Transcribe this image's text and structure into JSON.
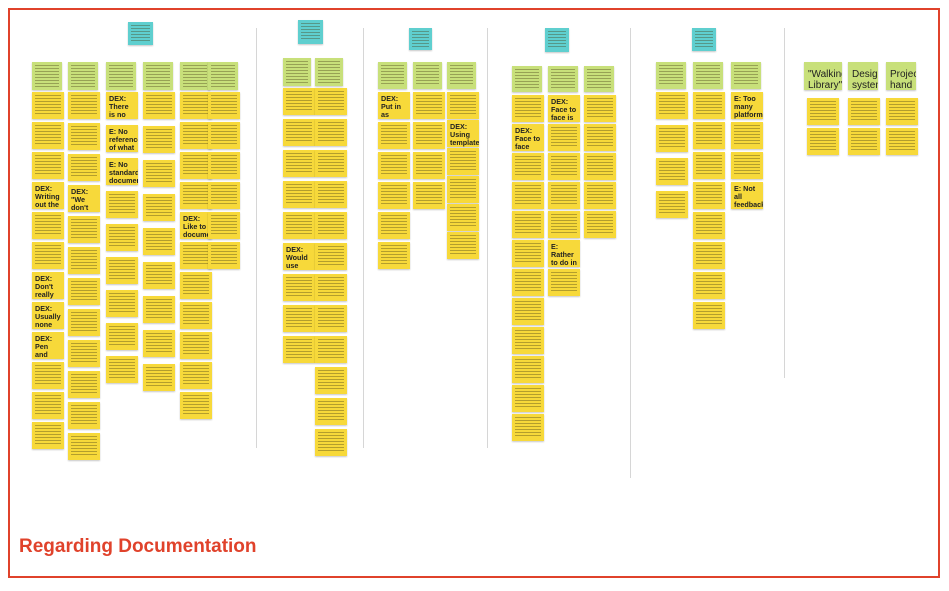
{
  "board": {
    "title": "Regarding Documentation",
    "accent_color": "#e0422b",
    "note_colors": {
      "yellow": "#f7d93a",
      "green": "#c8e07a",
      "teal": "#5fcfcf"
    }
  },
  "readable_notes": {
    "n1": "DEX: Writing out the foundation first and the specific",
    "n2": "DEX: \"We don't have much time for versions\"",
    "n3": "DEX: Don't really digitize the pen & paper notes",
    "n4": "DEX: Usually none taken on agentas docs",
    "n5": "DEX: Pen and paper preferred way to note",
    "n6": "DEX: There is no forum confusing offline",
    "n7": "E: No reference of what should be documented",
    "n8": "E: No standard documentation process",
    "n9": "DEX: Like to document visually",
    "n10": "DEX: Put in as many scenarios as possible",
    "n11": "DEX: Using templates for visual results",
    "n12": "DEX: Face to face meetings is frequently",
    "n13": "DEX: Face to face is more superior",
    "n14": "E: Rather to do in person and get all at once",
    "n15": "E: Too many platforms to access being used",
    "n16": "E: Not all feedback was accounted for",
    "n17": "DEX: Would use Dropbox for the sharing",
    "label1": "\"Walking Library\"",
    "label2": "Design system",
    "label3": "Project hand over"
  }
}
